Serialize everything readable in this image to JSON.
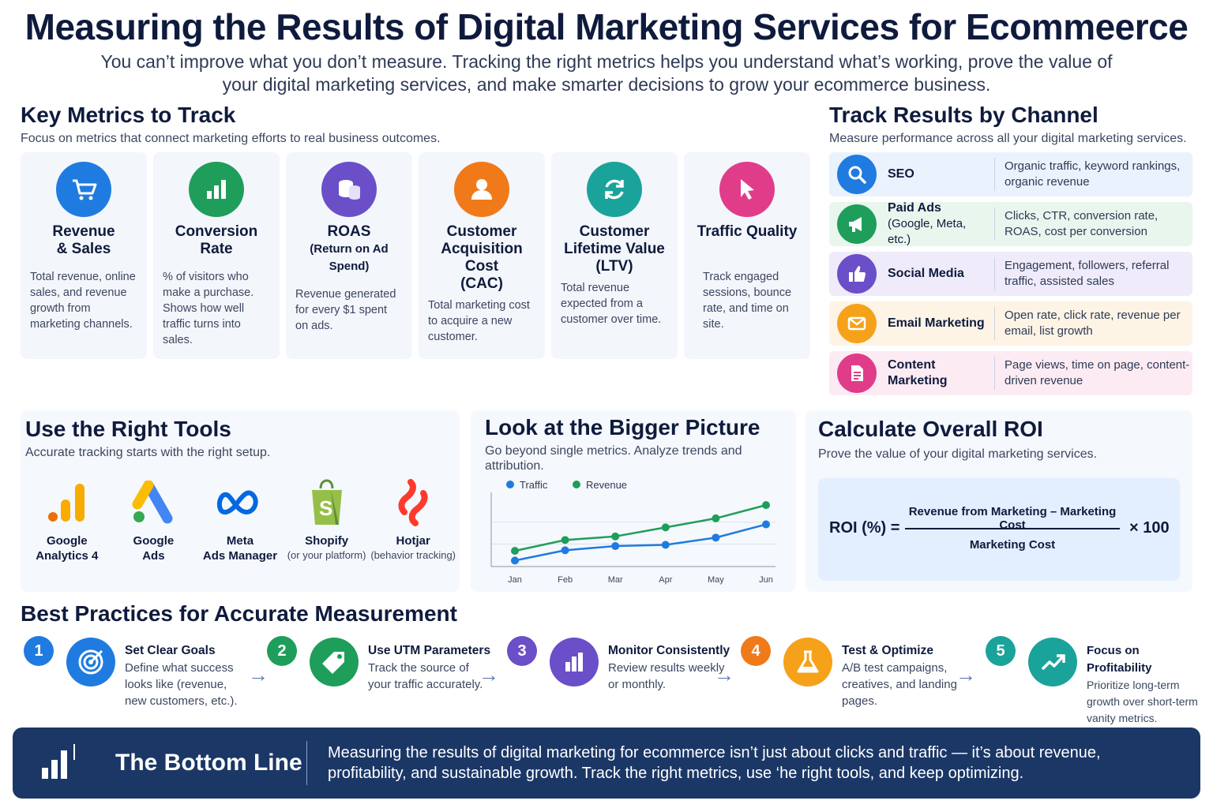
{
  "header": {
    "title": "Measuring the Results of Digital Marketing Services for Ecommeerce",
    "subtitle": "You can’t improve what you don’t measure. Tracking the right metrics helps you understand what’s working, prove the value of your digital marketing services, and make smarter decisions to grow your ecommerce business."
  },
  "key_metrics": {
    "title": "Key Metrics to Track",
    "subtitle": "Focus on metrics that connect marketing efforts to real business outcomes.",
    "cards": [
      {
        "name": "Revenue",
        "name2": "& Sales",
        "desc": "Total revenue, online sales, and revenue growth from marketing channels.",
        "icon": "shopping-cart-icon",
        "color": "#1f7be0"
      },
      {
        "name": "Conversion",
        "name2": "Rate",
        "desc": "% of visitors who make a purchase. Shows how well traffic turns into sales.",
        "icon": "bar-chart-icon",
        "color": "#1e9e5a"
      },
      {
        "name": "ROAS",
        "name2": "(Return on Ad Spend)",
        "desc": "Revenue generated for every $1 spent on ads.",
        "icon": "coins-icon",
        "color": "#6a4fc9"
      },
      {
        "name": "Customer Acquisition Cost",
        "name2": "(CAC)",
        "desc": "Total marketing cost to acquire a new customer.",
        "icon": "user-icon",
        "color": "#f07a1a"
      },
      {
        "name": "Customer Lifetime Value",
        "name2": "(LTV)",
        "desc": "Total revenue expected from a customer over time.",
        "icon": "refresh-icon",
        "color": "#1aa39a"
      },
      {
        "name": "Traffic Quality",
        "name2": "",
        "desc": "Track engaged sessions, bounce rate, and time on site.",
        "icon": "cursor-icon",
        "color": "#e03c8a"
      }
    ]
  },
  "channels": {
    "title": "Track Results by Channel",
    "subtitle": "Measure performance across all your digital marketing services.",
    "rows": [
      {
        "name": "SEO",
        "sub": "",
        "desc": "Organic traffic, keyword rankings, organic revenue",
        "icon": "search-icon",
        "color": "#1f7be0",
        "bg": "#eaf2fd"
      },
      {
        "name": "Paid Ads",
        "sub": "(Google, Meta, etc.)",
        "desc": "Clicks, CTR, conversion rate, ROAS, cost per conversion",
        "icon": "megaphone-icon",
        "color": "#1e9e5a",
        "bg": "#e8f6ee"
      },
      {
        "name": "Social Media",
        "sub": "",
        "desc": "Engagement, followers, referral traffic, assisted sales",
        "icon": "thumbs-up-icon",
        "color": "#6a4fc9",
        "bg": "#efebfa"
      },
      {
        "name": "Email Marketing",
        "sub": "",
        "desc": "Open rate, click rate, revenue per email, list growth",
        "icon": "envelope-icon",
        "color": "#f5a21a",
        "bg": "#fdf4e6"
      },
      {
        "name": "Content Marketing",
        "sub": "",
        "desc": "Page views, time on page, content-driven revenue",
        "icon": "document-icon",
        "color": "#e03c8a",
        "bg": "#fcebf3"
      }
    ]
  },
  "tools": {
    "title": "Use the Right Tools",
    "subtitle": "Accurate tracking starts with the right setup.",
    "items": [
      {
        "name": "Google",
        "name2": "Analytics 4",
        "note": "",
        "icon": "google-analytics-icon"
      },
      {
        "name": "Google",
        "name2": "Ads",
        "note": "",
        "icon": "google-ads-icon"
      },
      {
        "name": "Meta",
        "name2": "Ads Manager",
        "note": "",
        "icon": "meta-icon"
      },
      {
        "name": "Shopify",
        "name2": "",
        "note": "(or your platform)",
        "icon": "shopify-icon"
      },
      {
        "name": "Hotjar",
        "name2": "",
        "note": "(behavior tracking)",
        "icon": "hotjar-icon"
      }
    ]
  },
  "bigger_picture": {
    "title": "Look at the Bigger Picture",
    "subtitle": "Go beyond single metrics. Analyze trends and attribution."
  },
  "chart_data": {
    "type": "line",
    "categories": [
      "Jan",
      "Feb",
      "Mar",
      "Apr",
      "May",
      "Jun"
    ],
    "series": [
      {
        "name": "Traffic",
        "values": [
          1.0,
          2.7,
          3.4,
          3.6,
          4.8,
          7.0
        ],
        "color": "#1f7be0"
      },
      {
        "name": "Revenue",
        "values": [
          2.6,
          4.4,
          5.0,
          6.5,
          8.0,
          10.2
        ],
        "color": "#1e9e5a"
      }
    ],
    "ylim": [
      0,
      11
    ],
    "grid": true,
    "legend": "top-left"
  },
  "roi": {
    "title": "Calculate Overall ROI",
    "subtitle": "Prove the value of your digital marketing services.",
    "label": "ROI (%) =",
    "numerator": "Revenue from Marketing – Marketing Cost",
    "denominator": "Marketing Cost",
    "multiplier": "× 100"
  },
  "best_practices": {
    "title": "Best Practices for Accurate Measurement",
    "items": [
      {
        "num": "1",
        "name": "Set Clear Goals",
        "desc": "Define what success looks like (revenue, new customers, etc.).",
        "color": "#1f7be0",
        "icon": "target-icon"
      },
      {
        "num": "2",
        "name": "Use UTM Parameters",
        "desc": "Track the source of your traffic accurately.",
        "color": "#1e9e5a",
        "icon": "tag-icon"
      },
      {
        "num": "3",
        "name": "Monitor Consistently",
        "desc": "Review results weekly or monthly.",
        "color": "#6a4fc9",
        "icon": "bar-chart-icon"
      },
      {
        "num": "4",
        "name": "Test & Optimize",
        "desc": "A/B test campaigns, creatives, and landing pages.",
        "color": "#f5a21a",
        "icon": "flask-icon"
      },
      {
        "num": "5",
        "name": "Focus on Profitability",
        "desc": "Prioritize long-term growth over short-term vanity metrics.",
        "color": "#1aa39a",
        "icon": "trend-up-icon"
      }
    ]
  },
  "bottom_line": {
    "title": "The Bottom Line",
    "text": "Measuring the results of digital marketing for ecommerce isn’t just about clicks and traffic — it’s about revenue, profitability, and sustainable growth. Track the right metrics, use ‘he right tools, and keep optimizing."
  }
}
